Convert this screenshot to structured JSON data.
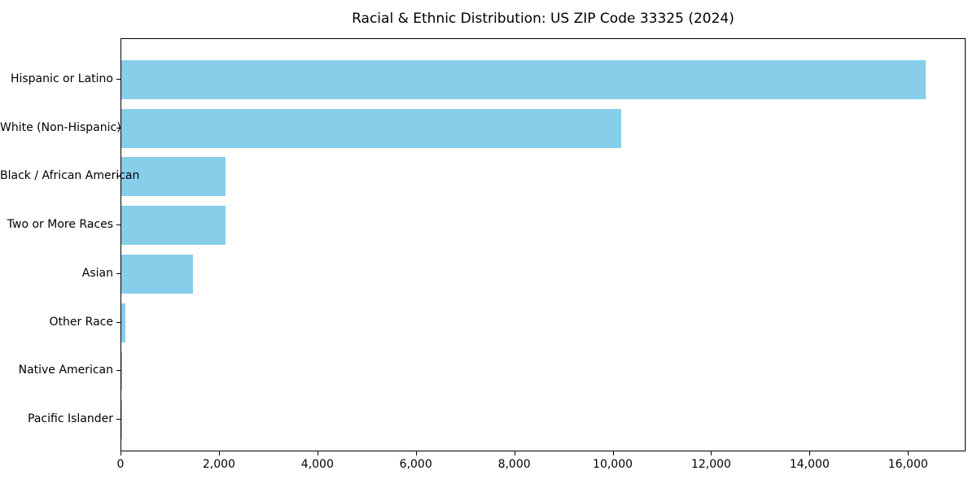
{
  "chart_data": {
    "type": "bar",
    "orientation": "horizontal",
    "title": "Racial & Ethnic Distribution: US ZIP Code 33325 (2024)",
    "categories": [
      "Hispanic or Latino",
      "White (Non-Hispanic)",
      "Black / African American",
      "Two or More Races",
      "Asian",
      "Other Race",
      "Native American",
      "Pacific Islander"
    ],
    "values": [
      16340,
      10160,
      2115,
      2110,
      1460,
      75,
      20,
      5
    ],
    "bar_color": "#87CEEB",
    "xlabel": "",
    "ylabel": "",
    "xlim": [
      0,
      17170
    ],
    "x_ticks": [
      0,
      2000,
      4000,
      6000,
      8000,
      10000,
      12000,
      14000,
      16000
    ],
    "x_tick_labels": [
      "0",
      "2,000",
      "4,000",
      "6,000",
      "8,000",
      "10,000",
      "12,000",
      "14,000",
      "16,000"
    ],
    "grid": false,
    "legend": null,
    "axis_color": "#000000",
    "text_color": "#000000",
    "background_color": "#ffffff"
  }
}
